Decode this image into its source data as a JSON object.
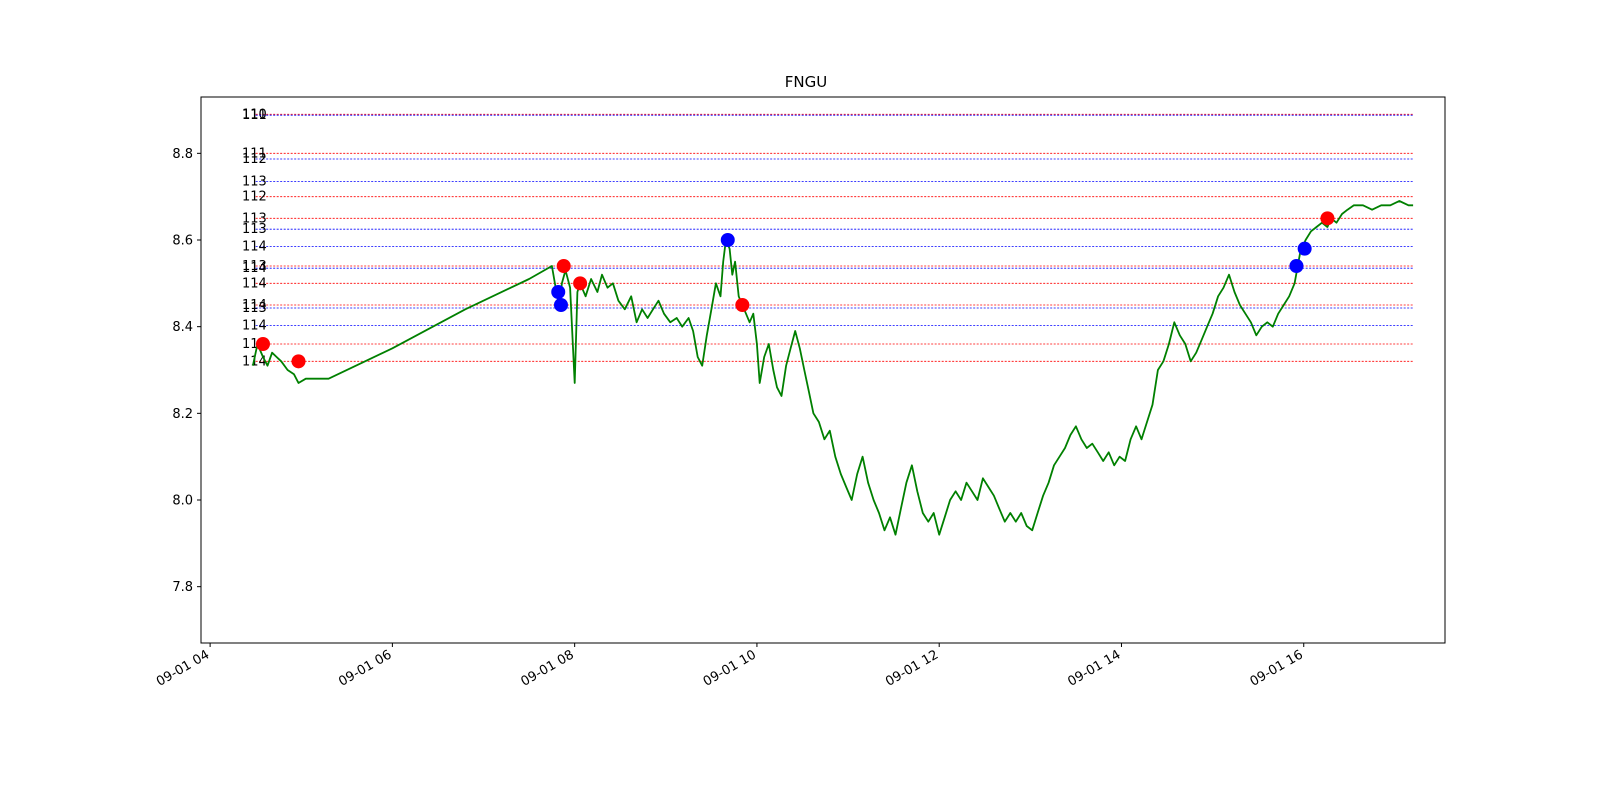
{
  "chart_data": {
    "type": "line",
    "title": "FNGU",
    "xlabel": "",
    "ylabel": "",
    "x_axis": "time (hours on 09-01)",
    "xlim": [
      3.9,
      17.55
    ],
    "ylim": [
      7.67,
      8.93
    ],
    "x_ticks": [
      {
        "x": 4,
        "label": "09-01 04"
      },
      {
        "x": 6,
        "label": "09-01 06"
      },
      {
        "x": 8,
        "label": "09-01 08"
      },
      {
        "x": 10,
        "label": "09-01 10"
      },
      {
        "x": 12,
        "label": "09-01 12"
      },
      {
        "x": 14,
        "label": "09-01 14"
      },
      {
        "x": 16,
        "label": "09-01 16"
      }
    ],
    "y_ticks": [
      {
        "y": 7.8,
        "label": "7.8"
      },
      {
        "y": 8.0,
        "label": "8.0"
      },
      {
        "y": 8.2,
        "label": "8.2"
      },
      {
        "y": 8.4,
        "label": "8.4"
      },
      {
        "y": 8.6,
        "label": "8.6"
      },
      {
        "y": 8.8,
        "label": "8.8"
      }
    ],
    "grid": false,
    "series": [
      {
        "color": "#008000",
        "points": [
          [
            4.47,
            8.31
          ],
          [
            4.52,
            8.36
          ],
          [
            4.58,
            8.33
          ],
          [
            4.63,
            8.31
          ],
          [
            4.68,
            8.34
          ],
          [
            4.73,
            8.33
          ],
          [
            4.78,
            8.32
          ],
          [
            4.85,
            8.3
          ],
          [
            4.92,
            8.29
          ],
          [
            4.97,
            8.27
          ],
          [
            5.05,
            8.28
          ],
          [
            5.3,
            8.28
          ],
          [
            6.0,
            8.35
          ],
          [
            6.8,
            8.44
          ],
          [
            7.5,
            8.51
          ],
          [
            7.75,
            8.54
          ],
          [
            7.8,
            8.48
          ],
          [
            7.83,
            8.45
          ],
          [
            7.86,
            8.5
          ],
          [
            7.9,
            8.53
          ],
          [
            7.95,
            8.49
          ],
          [
            8.0,
            8.27
          ],
          [
            8.03,
            8.48
          ],
          [
            8.06,
            8.5
          ],
          [
            8.12,
            8.47
          ],
          [
            8.18,
            8.51
          ],
          [
            8.25,
            8.48
          ],
          [
            8.3,
            8.52
          ],
          [
            8.36,
            8.49
          ],
          [
            8.42,
            8.5
          ],
          [
            8.48,
            8.46
          ],
          [
            8.55,
            8.44
          ],
          [
            8.62,
            8.47
          ],
          [
            8.68,
            8.41
          ],
          [
            8.74,
            8.44
          ],
          [
            8.8,
            8.42
          ],
          [
            8.86,
            8.44
          ],
          [
            8.92,
            8.46
          ],
          [
            8.98,
            8.43
          ],
          [
            9.05,
            8.41
          ],
          [
            9.12,
            8.42
          ],
          [
            9.18,
            8.4
          ],
          [
            9.25,
            8.42
          ],
          [
            9.3,
            8.39
          ],
          [
            9.35,
            8.33
          ],
          [
            9.4,
            8.31
          ],
          [
            9.45,
            8.38
          ],
          [
            9.5,
            8.44
          ],
          [
            9.55,
            8.5
          ],
          [
            9.6,
            8.47
          ],
          [
            9.63,
            8.55
          ],
          [
            9.66,
            8.6
          ],
          [
            9.7,
            8.58
          ],
          [
            9.73,
            8.52
          ],
          [
            9.76,
            8.55
          ],
          [
            9.8,
            8.47
          ],
          [
            9.84,
            8.45
          ],
          [
            9.88,
            8.43
          ],
          [
            9.92,
            8.41
          ],
          [
            9.96,
            8.43
          ],
          [
            10.0,
            8.36
          ],
          [
            10.03,
            8.27
          ],
          [
            10.08,
            8.33
          ],
          [
            10.13,
            8.36
          ],
          [
            10.18,
            8.3
          ],
          [
            10.22,
            8.26
          ],
          [
            10.27,
            8.24
          ],
          [
            10.32,
            8.31
          ],
          [
            10.37,
            8.35
          ],
          [
            10.42,
            8.39
          ],
          [
            10.47,
            8.35
          ],
          [
            10.52,
            8.3
          ],
          [
            10.57,
            8.25
          ],
          [
            10.62,
            8.2
          ],
          [
            10.68,
            8.18
          ],
          [
            10.74,
            8.14
          ],
          [
            10.8,
            8.16
          ],
          [
            10.86,
            8.1
          ],
          [
            10.92,
            8.06
          ],
          [
            10.98,
            8.03
          ],
          [
            11.04,
            8.0
          ],
          [
            11.1,
            8.06
          ],
          [
            11.16,
            8.1
          ],
          [
            11.22,
            8.04
          ],
          [
            11.28,
            8.0
          ],
          [
            11.34,
            7.97
          ],
          [
            11.4,
            7.93
          ],
          [
            11.46,
            7.96
          ],
          [
            11.52,
            7.92
          ],
          [
            11.58,
            7.98
          ],
          [
            11.64,
            8.04
          ],
          [
            11.7,
            8.08
          ],
          [
            11.76,
            8.02
          ],
          [
            11.82,
            7.97
          ],
          [
            11.88,
            7.95
          ],
          [
            11.94,
            7.97
          ],
          [
            12.0,
            7.92
          ],
          [
            12.06,
            7.96
          ],
          [
            12.12,
            8.0
          ],
          [
            12.18,
            8.02
          ],
          [
            12.24,
            8.0
          ],
          [
            12.3,
            8.04
          ],
          [
            12.36,
            8.02
          ],
          [
            12.42,
            8.0
          ],
          [
            12.48,
            8.05
          ],
          [
            12.54,
            8.03
          ],
          [
            12.6,
            8.01
          ],
          [
            12.66,
            7.98
          ],
          [
            12.72,
            7.95
          ],
          [
            12.78,
            7.97
          ],
          [
            12.84,
            7.95
          ],
          [
            12.9,
            7.97
          ],
          [
            12.96,
            7.94
          ],
          [
            13.02,
            7.93
          ],
          [
            13.08,
            7.97
          ],
          [
            13.14,
            8.01
          ],
          [
            13.2,
            8.04
          ],
          [
            13.26,
            8.08
          ],
          [
            13.32,
            8.1
          ],
          [
            13.38,
            8.12
          ],
          [
            13.44,
            8.15
          ],
          [
            13.5,
            8.17
          ],
          [
            13.56,
            8.14
          ],
          [
            13.62,
            8.12
          ],
          [
            13.68,
            8.13
          ],
          [
            13.74,
            8.11
          ],
          [
            13.8,
            8.09
          ],
          [
            13.86,
            8.11
          ],
          [
            13.92,
            8.08
          ],
          [
            13.98,
            8.1
          ],
          [
            14.04,
            8.09
          ],
          [
            14.1,
            8.14
          ],
          [
            14.16,
            8.17
          ],
          [
            14.22,
            8.14
          ],
          [
            14.28,
            8.18
          ],
          [
            14.34,
            8.22
          ],
          [
            14.4,
            8.3
          ],
          [
            14.46,
            8.32
          ],
          [
            14.52,
            8.36
          ],
          [
            14.58,
            8.41
          ],
          [
            14.64,
            8.38
          ],
          [
            14.7,
            8.36
          ],
          [
            14.76,
            8.32
          ],
          [
            14.82,
            8.34
          ],
          [
            14.88,
            8.37
          ],
          [
            14.94,
            8.4
          ],
          [
            15.0,
            8.43
          ],
          [
            15.06,
            8.47
          ],
          [
            15.12,
            8.49
          ],
          [
            15.18,
            8.52
          ],
          [
            15.24,
            8.48
          ],
          [
            15.3,
            8.45
          ],
          [
            15.36,
            8.43
          ],
          [
            15.42,
            8.41
          ],
          [
            15.48,
            8.38
          ],
          [
            15.54,
            8.4
          ],
          [
            15.6,
            8.41
          ],
          [
            15.66,
            8.4
          ],
          [
            15.72,
            8.43
          ],
          [
            15.78,
            8.45
          ],
          [
            15.84,
            8.47
          ],
          [
            15.9,
            8.5
          ],
          [
            15.96,
            8.57
          ],
          [
            16.02,
            8.6
          ],
          [
            16.08,
            8.62
          ],
          [
            16.14,
            8.63
          ],
          [
            16.2,
            8.64
          ],
          [
            16.26,
            8.63
          ],
          [
            16.3,
            8.65
          ],
          [
            16.36,
            8.64
          ],
          [
            16.42,
            8.66
          ],
          [
            16.48,
            8.67
          ],
          [
            16.55,
            8.68
          ],
          [
            16.65,
            8.68
          ],
          [
            16.75,
            8.67
          ],
          [
            16.85,
            8.68
          ],
          [
            16.95,
            8.68
          ],
          [
            17.05,
            8.69
          ],
          [
            17.15,
            8.68
          ],
          [
            17.2,
            8.68
          ]
        ]
      }
    ],
    "markers": [
      {
        "x": 4.58,
        "y": 8.36,
        "color": "#ff0000"
      },
      {
        "x": 4.97,
        "y": 8.32,
        "color": "#ff0000"
      },
      {
        "x": 7.82,
        "y": 8.48,
        "color": "#0000ff"
      },
      {
        "x": 7.85,
        "y": 8.45,
        "color": "#0000ff"
      },
      {
        "x": 7.88,
        "y": 8.54,
        "color": "#ff0000"
      },
      {
        "x": 8.06,
        "y": 8.5,
        "color": "#ff0000"
      },
      {
        "x": 9.68,
        "y": 8.6,
        "color": "#0000ff"
      },
      {
        "x": 9.84,
        "y": 8.45,
        "color": "#ff0000"
      },
      {
        "x": 15.92,
        "y": 8.54,
        "color": "#0000ff"
      },
      {
        "x": 16.01,
        "y": 8.58,
        "color": "#0000ff"
      },
      {
        "x": 16.26,
        "y": 8.65,
        "color": "#ff0000"
      }
    ],
    "hlines": [
      {
        "y": 8.89,
        "label": "110",
        "color": "#ff0000"
      },
      {
        "y": 8.888,
        "label": "111",
        "color": "#0000ff"
      },
      {
        "y": 8.8,
        "label": "111",
        "color": "#ff0000"
      },
      {
        "y": 8.787,
        "label": "112",
        "color": "#0000ff"
      },
      {
        "y": 8.735,
        "label": "113",
        "color": "#0000ff"
      },
      {
        "y": 8.7,
        "label": "112",
        "color": "#ff0000"
      },
      {
        "y": 8.65,
        "label": "113",
        "color": "#ff0000"
      },
      {
        "y": 8.625,
        "label": "113",
        "color": "#0000ff"
      },
      {
        "y": 8.585,
        "label": "114",
        "color": "#0000ff"
      },
      {
        "y": 8.54,
        "label": "113",
        "color": "#ff0000"
      },
      {
        "y": 8.535,
        "label": "114",
        "color": "#0000ff"
      },
      {
        "y": 8.5,
        "label": "114",
        "color": "#ff0000"
      },
      {
        "y": 8.45,
        "label": "114",
        "color": "#ff0000"
      },
      {
        "y": 8.443,
        "label": "113",
        "color": "#0000ff"
      },
      {
        "y": 8.403,
        "label": "114",
        "color": "#0000ff"
      },
      {
        "y": 8.36,
        "label": "113",
        "color": "#ff0000"
      },
      {
        "y": 8.32,
        "label": "114",
        "color": "#ff0000"
      }
    ],
    "hline_x_start": 4.5,
    "hline_x_end": 17.2
  }
}
